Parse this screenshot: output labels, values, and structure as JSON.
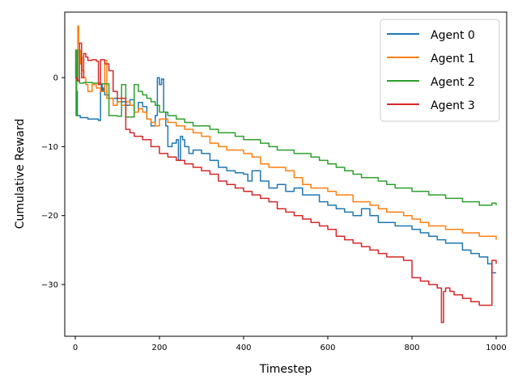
{
  "chart_data": {
    "type": "line",
    "title": "",
    "xlabel": "Timestep",
    "ylabel": "Cumulative Reward",
    "xlim": [
      -25,
      1025
    ],
    "ylim": [
      -37.5,
      9.5
    ],
    "xticks": [
      0,
      200,
      400,
      600,
      800,
      1000
    ],
    "yticks": [
      0,
      -10,
      -20,
      -30
    ],
    "grid": false,
    "legend": "top-right",
    "series": [
      {
        "name": "Agent 0",
        "color": "#1f77b4",
        "x": [
          0,
          3,
          5,
          8,
          12,
          30,
          55,
          60,
          62,
          64,
          66,
          68,
          70,
          80,
          100,
          120,
          130,
          140,
          150,
          160,
          170,
          180,
          190,
          195,
          200,
          205,
          210,
          215,
          220,
          230,
          240,
          245,
          250,
          255,
          260,
          270,
          280,
          300,
          320,
          340,
          360,
          380,
          400,
          410,
          420,
          440,
          460,
          480,
          500,
          520,
          540,
          560,
          580,
          600,
          620,
          640,
          660,
          680,
          700,
          720,
          740,
          760,
          780,
          800,
          820,
          840,
          860,
          880,
          900,
          920,
          940,
          960,
          980,
          990,
          1000
        ],
        "y": [
          0,
          -2,
          -5.5,
          -5.5,
          -5.8,
          -6,
          -6.2,
          -2,
          -1,
          -2,
          -1.5,
          -2,
          -2.5,
          -3,
          -3.5,
          -4,
          -3.2,
          -5,
          -3.6,
          -4.2,
          -6,
          -7,
          -5.5,
          0,
          -1,
          -0.2,
          -5,
          -7,
          -10,
          -9.5,
          -9,
          -12,
          -8.5,
          -9,
          -10,
          -11,
          -10.5,
          -11,
          -12,
          -13,
          -13.5,
          -13.8,
          -14,
          -15,
          -13.5,
          -15,
          -16,
          -15.5,
          -16.5,
          -16,
          -17,
          -17,
          -18,
          -18.5,
          -19,
          -19.5,
          -20,
          -19,
          -20,
          -21,
          -21,
          -21.5,
          -21.5,
          -22,
          -22.5,
          -23,
          -23.5,
          -24,
          -24,
          -25,
          -25.5,
          -26,
          -27,
          -28.3,
          -28.3
        ]
      },
      {
        "name": "Agent 1",
        "color": "#ff7f0e",
        "x": [
          0,
          2,
          4,
          6,
          8,
          10,
          12,
          14,
          16,
          20,
          25,
          30,
          40,
          50,
          60,
          70,
          75,
          80,
          90,
          100,
          110,
          120,
          130,
          140,
          150,
          160,
          170,
          180,
          190,
          200,
          220,
          240,
          260,
          280,
          300,
          320,
          340,
          360,
          380,
          400,
          420,
          440,
          460,
          480,
          500,
          520,
          540,
          560,
          580,
          600,
          620,
          640,
          660,
          680,
          700,
          720,
          740,
          760,
          780,
          800,
          820,
          840,
          860,
          880,
          900,
          920,
          940,
          960,
          980,
          1000
        ],
        "y": [
          0,
          4,
          3,
          7.5,
          5,
          4,
          2,
          3,
          1,
          0,
          -1,
          -2,
          -1,
          -1.5,
          -2,
          2.5,
          -3,
          -3,
          -4,
          -3.5,
          -4,
          -3.5,
          -4,
          -5,
          -4.5,
          -5,
          -6,
          -6.5,
          -7,
          -6,
          -6.5,
          -7,
          -7.5,
          -8,
          -8.5,
          -9.5,
          -10,
          -10.5,
          -10.5,
          -11,
          -11.5,
          -12.5,
          -13,
          -13,
          -13.5,
          -14.5,
          -15.5,
          -16,
          -16,
          -16.5,
          -17,
          -17,
          -18,
          -18,
          -18.5,
          -19,
          -19.5,
          -19.5,
          -20,
          -20.5,
          -21,
          -21.5,
          -21.5,
          -22,
          -22,
          -22.5,
          -22.5,
          -23,
          -23,
          -23.5
        ]
      },
      {
        "name": "Agent 2",
        "color": "#2ca02c",
        "x": [
          0,
          1,
          2,
          3,
          4,
          5,
          6,
          8,
          10,
          20,
          40,
          60,
          80,
          100,
          110,
          120,
          140,
          150,
          160,
          170,
          180,
          190,
          200,
          220,
          240,
          260,
          280,
          300,
          320,
          340,
          360,
          380,
          400,
          420,
          440,
          460,
          480,
          500,
          520,
          540,
          560,
          580,
          600,
          620,
          640,
          660,
          680,
          700,
          720,
          740,
          760,
          780,
          800,
          820,
          840,
          860,
          880,
          900,
          920,
          940,
          960,
          980,
          990,
          1000
        ],
        "y": [
          0,
          4,
          -5.5,
          0,
          2,
          4,
          -0.5,
          -0.5,
          -0.8,
          -0.7,
          -0.8,
          -0.9,
          -5.5,
          -5.6,
          -1,
          -5.7,
          -1,
          -2,
          -2.5,
          -3,
          -3.5,
          -4,
          -5,
          -5.5,
          -6,
          -6.5,
          -7,
          -7,
          -7.5,
          -8,
          -8,
          -8.5,
          -9,
          -9,
          -9.5,
          -10,
          -10.5,
          -10.5,
          -11,
          -11,
          -11.5,
          -12,
          -12.5,
          -13,
          -13.5,
          -14,
          -14.5,
          -14.5,
          -15,
          -15.5,
          -16,
          -16,
          -16.5,
          -16.5,
          -17,
          -17,
          -17.5,
          -17.5,
          -18,
          -18,
          -18.5,
          -18.5,
          -18.2,
          -18.5
        ]
      },
      {
        "name": "Agent 3",
        "color": "#d62728",
        "x": [
          0,
          3,
          6,
          10,
          15,
          20,
          25,
          30,
          40,
          50,
          55,
          60,
          70,
          80,
          90,
          100,
          120,
          130,
          140,
          160,
          180,
          200,
          220,
          240,
          260,
          280,
          300,
          320,
          340,
          360,
          380,
          400,
          420,
          440,
          460,
          480,
          500,
          520,
          540,
          560,
          580,
          600,
          620,
          640,
          660,
          680,
          700,
          720,
          740,
          760,
          780,
          800,
          820,
          840,
          860,
          870,
          875,
          880,
          890,
          900,
          920,
          940,
          960,
          980,
          990,
          1000
        ],
        "y": [
          0,
          -0.2,
          -0.5,
          5,
          0,
          3.5,
          3,
          2.5,
          2.6,
          2.4,
          -1,
          2.6,
          2,
          1,
          -2,
          -3,
          -7.5,
          -8,
          -8.5,
          -9,
          -10,
          -11,
          -11.5,
          -12,
          -12.5,
          -13,
          -13.5,
          -14,
          -15,
          -15.5,
          -16,
          -16.5,
          -17,
          -17.5,
          -18,
          -19,
          -19.5,
          -20,
          -20.5,
          -21,
          -21.5,
          -22,
          -23,
          -23.5,
          -24,
          -24.5,
          -25,
          -25.5,
          -26,
          -26,
          -26.5,
          -29,
          -29.5,
          -30,
          -30.5,
          -35.5,
          -31,
          -30.5,
          -31,
          -31.5,
          -32,
          -32.5,
          -33,
          -33,
          -26.5,
          -27
        ]
      }
    ]
  }
}
